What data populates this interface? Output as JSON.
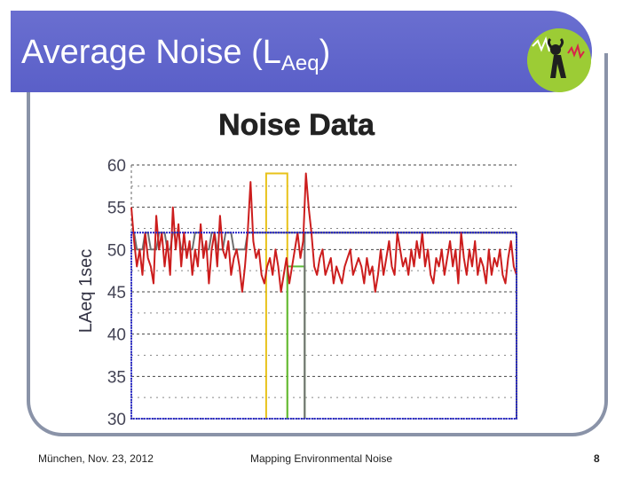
{
  "slide": {
    "title_main": "Average Noise (L",
    "title_sub": "Aeq",
    "title_close": ")",
    "footer_left": "München, Nov. 23, 2012",
    "footer_center": "Mapping Environmental Noise",
    "page_number": "8",
    "banner_color": "#5f63cc",
    "logo_color": "#9ccc35"
  },
  "chart_data": {
    "type": "line",
    "title": "Noise Data",
    "ylabel": "LAeq 1sec",
    "xlabel": "",
    "ylim": [
      30,
      60
    ],
    "yticks": [
      "30",
      "35",
      "40",
      "45",
      "50",
      "55",
      "60"
    ],
    "grid": true,
    "series": [
      {
        "color": "#cc1d1d",
        "values": [
          55,
          51,
          48,
          50,
          47,
          52,
          49,
          48,
          46,
          54,
          50,
          52,
          48,
          51,
          47,
          55,
          50,
          53,
          48,
          52,
          49,
          51,
          47,
          50,
          48,
          53,
          49,
          51,
          46,
          50,
          52,
          48,
          54,
          50,
          49,
          51,
          47,
          49,
          50,
          48,
          45,
          48,
          52,
          58,
          51,
          49,
          50,
          47,
          46,
          48,
          49,
          47,
          50,
          48,
          45,
          47,
          49,
          46,
          48,
          50,
          52,
          49,
          51,
          59,
          55,
          52,
          48,
          47,
          49,
          50,
          47,
          48,
          49,
          46,
          48,
          47,
          46,
          48,
          49,
          50,
          47,
          48,
          49,
          48,
          46,
          49,
          47,
          48,
          45,
          47,
          50,
          47,
          49,
          51,
          48,
          47,
          52,
          50,
          48,
          49,
          47,
          50,
          48,
          51,
          49,
          52,
          48,
          50,
          47,
          46,
          49,
          48,
          50,
          47,
          49,
          51,
          48,
          50,
          46,
          52,
          49,
          47,
          50,
          48,
          51,
          47,
          49,
          48,
          46,
          50,
          47,
          49,
          48,
          50,
          47,
          46,
          49,
          51,
          48,
          47
        ]
      },
      {
        "color": "#707070",
        "values": [
          52,
          52,
          50,
          50,
          50,
          52,
          52,
          50,
          50,
          50,
          52,
          52,
          52,
          50,
          50,
          52,
          52,
          52,
          50,
          50,
          50,
          50,
          50,
          52,
          52,
          52,
          50,
          50,
          50,
          52,
          52,
          50,
          50,
          50,
          52,
          52,
          52,
          50,
          50,
          50,
          50,
          50,
          52,
          52,
          52,
          52,
          52,
          52,
          52,
          52,
          52,
          52,
          52,
          52,
          52,
          52,
          52,
          52,
          52,
          52,
          52,
          52,
          52,
          52,
          52,
          52,
          52,
          52,
          52,
          52,
          52,
          52,
          52,
          52,
          52,
          52,
          52,
          52,
          52,
          52,
          52,
          52,
          52,
          52,
          52,
          52,
          52,
          52,
          52,
          52,
          52,
          52,
          52,
          52,
          52,
          52,
          52,
          52,
          52,
          52,
          52,
          52,
          52,
          52,
          52,
          52,
          52,
          52,
          52,
          52,
          52,
          52,
          52,
          52,
          52,
          52,
          52,
          52,
          52,
          52,
          52,
          52,
          52,
          52,
          52,
          52,
          52,
          52,
          52,
          52,
          52,
          52,
          52,
          52,
          52,
          52,
          52,
          52,
          52,
          52
        ]
      }
    ],
    "highlights": [
      {
        "color": "#e8c21a",
        "x_start": 0.35,
        "x_end": 0.405,
        "top": 59
      },
      {
        "color": "#5dbb3a",
        "x_start": 0.405,
        "x_end": 0.45,
        "top": 48
      },
      {
        "color": "#707070",
        "x_start": 0.45,
        "x_end": 1.0,
        "top": 52
      }
    ]
  }
}
